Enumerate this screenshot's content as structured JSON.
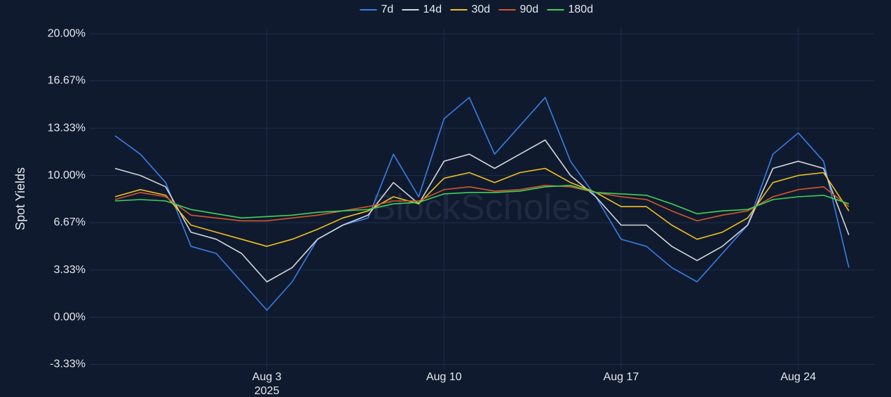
{
  "chart_data": {
    "type": "line",
    "legend": "top",
    "grid": true,
    "ylabel": "Spot Yields",
    "watermark": "BlockScholes",
    "x": [
      "2025-07-28",
      "2025-07-29",
      "2025-07-30",
      "2025-07-31",
      "2025-08-01",
      "2025-08-02",
      "2025-08-03",
      "2025-08-04",
      "2025-08-05",
      "2025-08-06",
      "2025-08-07",
      "2025-08-08",
      "2025-08-09",
      "2025-08-10",
      "2025-08-11",
      "2025-08-12",
      "2025-08-13",
      "2025-08-14",
      "2025-08-15",
      "2025-08-16",
      "2025-08-17",
      "2025-08-18",
      "2025-08-19",
      "2025-08-20",
      "2025-08-21",
      "2025-08-22",
      "2025-08-23",
      "2025-08-24",
      "2025-08-25",
      "2025-08-26"
    ],
    "xlim": [
      "2025-07-27",
      "2025-08-27"
    ],
    "xticks": [
      {
        "value": "2025-08-03",
        "label": "Aug 3",
        "year": "2025"
      },
      {
        "value": "2025-08-10",
        "label": "Aug 10"
      },
      {
        "value": "2025-08-17",
        "label": "Aug 17"
      },
      {
        "value": "2025-08-24",
        "label": "Aug 24"
      }
    ],
    "ylim": [
      -3.7,
      20.4
    ],
    "yticks": [
      {
        "value": -3.33,
        "label": "-3.33%"
      },
      {
        "value": 0,
        "label": "0.00%"
      },
      {
        "value": 3.33,
        "label": "3.33%"
      },
      {
        "value": 6.67,
        "label": "6.67%"
      },
      {
        "value": 10,
        "label": "10.00%"
      },
      {
        "value": 13.33,
        "label": "13.33%"
      },
      {
        "value": 16.67,
        "label": "16.67%"
      },
      {
        "value": 20,
        "label": "20.00%"
      }
    ],
    "series": [
      {
        "name": "7d",
        "color": "#3a7ee6",
        "values": [
          12.8,
          11.5,
          9.5,
          5.0,
          4.5,
          2.5,
          0.5,
          2.5,
          5.5,
          6.5,
          7.0,
          11.5,
          8.5,
          14.0,
          15.5,
          11.5,
          13.5,
          15.5,
          11.0,
          8.5,
          5.5,
          5.0,
          3.5,
          2.5,
          4.5,
          6.5,
          11.5,
          13.0,
          11.0,
          3.5
        ]
      },
      {
        "name": "14d",
        "color": "#d4d6dc",
        "values": [
          10.5,
          10,
          9.2,
          6,
          5.5,
          4.5,
          2.5,
          3.5,
          5.5,
          6.5,
          7.2,
          9.5,
          8,
          11,
          11.5,
          10.5,
          11.5,
          12.5,
          10,
          8.5,
          6.5,
          6.5,
          5,
          4,
          5,
          6.5,
          10.5,
          11,
          10.5,
          5.8
        ]
      },
      {
        "name": "30d",
        "color": "#f0c020",
        "values": [
          8.5,
          9,
          8.6,
          6.5,
          6,
          5.5,
          5,
          5.5,
          6.2,
          7,
          7.5,
          8.5,
          8,
          9.8,
          10.2,
          9.5,
          10.2,
          10.5,
          9.5,
          8.8,
          7.8,
          7.8,
          6.5,
          5.5,
          6,
          7,
          9.5,
          10,
          10.2,
          7.5
        ]
      },
      {
        "name": "90d",
        "color": "#d4582a",
        "values": [
          8.3,
          8.8,
          8.5,
          7.2,
          7,
          6.8,
          6.8,
          7,
          7.2,
          7.5,
          7.8,
          8.2,
          8.2,
          9,
          9.2,
          8.9,
          9,
          9.3,
          9.2,
          8.8,
          8.5,
          8.3,
          7.5,
          6.8,
          7.2,
          7.5,
          8.5,
          9,
          9.2,
          7.8
        ]
      },
      {
        "name": "180d",
        "color": "#3ed35a",
        "values": [
          8.2,
          8.3,
          8.2,
          7.6,
          7.3,
          7,
          7.1,
          7.2,
          7.4,
          7.5,
          7.6,
          8,
          8.1,
          8.7,
          8.8,
          8.8,
          8.9,
          9.2,
          9.3,
          8.8,
          8.7,
          8.6,
          8,
          7.3,
          7.5,
          7.6,
          8.3,
          8.5,
          8.6,
          8
        ]
      }
    ]
  }
}
